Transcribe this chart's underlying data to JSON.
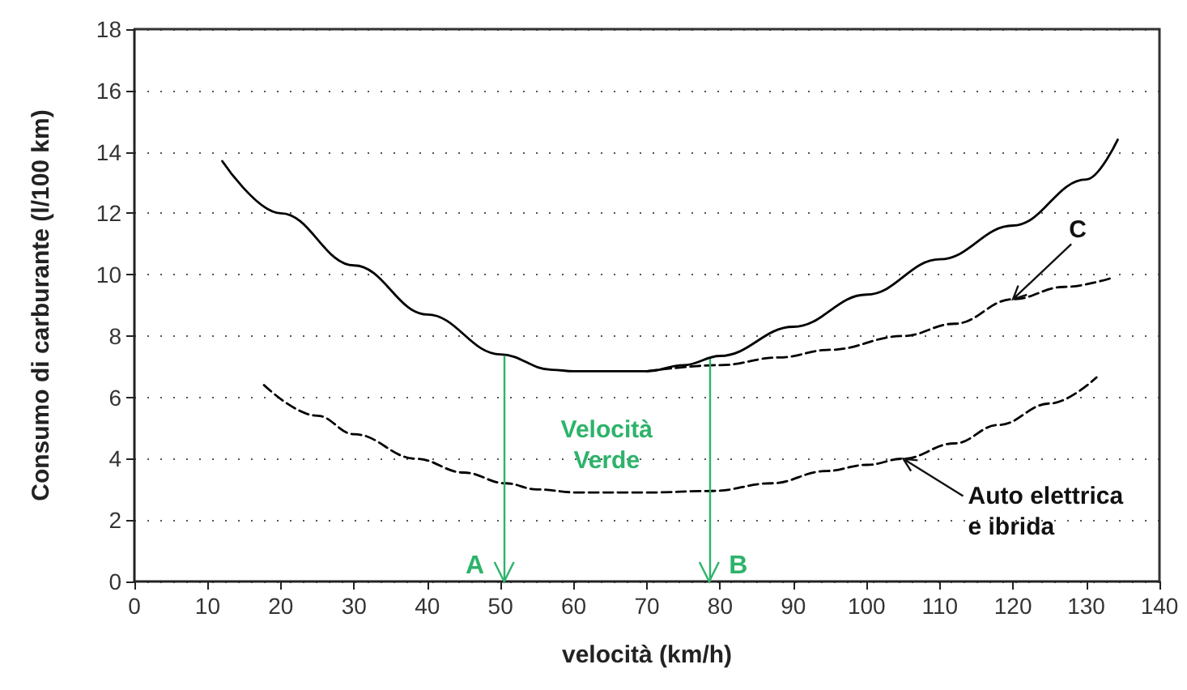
{
  "chart_data": {
    "type": "line",
    "xlabel": "velocità (km/h)",
    "ylabel": "Consumo di carburante (l/100 km)",
    "annotations": [
      "Velocità\nVerde"
    ],
    "series": [
      {
        "color": "#000000",
        "line_style": "solid",
        "x": [
          12,
          20,
          30,
          40,
          50,
          57,
          60,
          65,
          70,
          75,
          80,
          90,
          100,
          110,
          120,
          130,
          134.3
        ],
        "values": [
          13.7,
          12.0,
          10.3,
          8.7,
          7.4,
          6.9,
          6.85,
          6.85,
          6.85,
          7.05,
          7.35,
          8.3,
          9.35,
          10.5,
          11.6,
          13.1,
          14.4
        ]
      },
      {
        "name": "C",
        "color": "#000000",
        "line_style": "dashed",
        "x": [
          70,
          80,
          88,
          95,
          105,
          112,
          120,
          127,
          133.6
        ],
        "values": [
          6.85,
          7.05,
          7.3,
          7.55,
          8.0,
          8.4,
          9.2,
          9.6,
          9.9
        ]
      },
      {
        "name": "Auto elettrica e ibrida",
        "color": "#000000",
        "line_style": "dashed",
        "x": [
          17.7,
          25,
          30,
          38.5,
          45,
          50.7,
          55,
          60.6,
          70,
          79,
          87,
          94.5,
          100,
          105,
          112,
          118,
          125,
          131.4
        ],
        "values": [
          6.4,
          5.4,
          4.8,
          4.0,
          3.55,
          3.2,
          3.0,
          2.9,
          2.9,
          2.95,
          3.2,
          3.6,
          3.8,
          4.0,
          4.5,
          5.1,
          5.8,
          6.65
        ]
      }
    ],
    "ref_lines": [
      {
        "axis": "x",
        "value": 50.5,
        "label": "A",
        "color": "#2db36b"
      },
      {
        "axis": "x",
        "value": 78.5,
        "label": "B",
        "color": "#2db36b"
      }
    ],
    "xlim": [
      0,
      140
    ],
    "xticks": [
      0,
      10,
      20,
      30,
      40,
      50,
      60,
      70,
      80,
      90,
      100,
      110,
      120,
      130,
      140
    ],
    "ylim": [
      0,
      18
    ],
    "yticks": [
      0,
      2,
      4,
      6,
      8,
      10,
      12,
      14,
      16,
      18
    ],
    "grid": "y",
    "legend": false,
    "marker": "none"
  }
}
